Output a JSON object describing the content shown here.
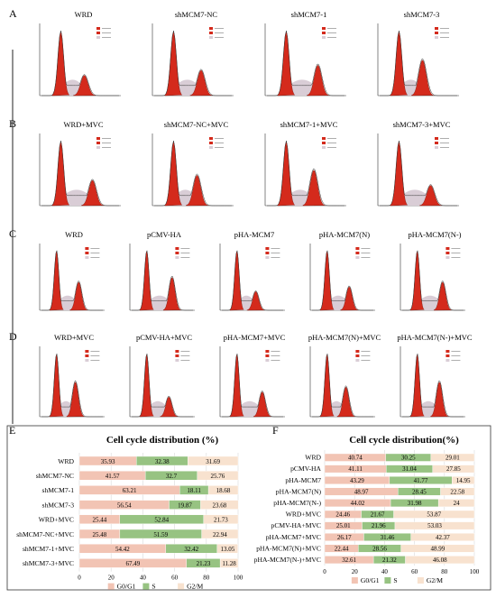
{
  "colors": {
    "g0g1": "#f2c4b4",
    "s": "#97c382",
    "g2m": "#f8e2cf",
    "peak": "#d42a1c",
    "sphase": "#d9cdd6"
  },
  "histogram_panels": [
    {
      "letter": "A",
      "titles": [
        "WRD",
        "shMCM7-NC",
        "shMCM7-1",
        "shMCM7-3"
      ]
    },
    {
      "letter": "B",
      "titles": [
        "WRD+MVC",
        "shMCM7-NC+MVC",
        "shMCM7-1+MVC",
        "shMCM7-3+MVC"
      ]
    },
    {
      "letter": "C",
      "titles": [
        "WRD",
        "pCMV-HA",
        "pHA-MCM7",
        "pHA-MCM7(N)",
        "pHA-MCM7(N-)"
      ]
    },
    {
      "letter": "D",
      "titles": [
        "WRD+MVC",
        "pCMV-HA+MVC",
        "pHA-MCM7+MVC",
        "pHA-MCM7(N)+MVC",
        "pHA-MCM7(N-)+MVC"
      ]
    }
  ],
  "chart_data": [
    {
      "letter": "E",
      "type": "bar",
      "stacked": true,
      "orientation": "horizontal",
      "title": "Cell cycle distribution (%)",
      "categories": [
        "WRD",
        "shMCM7-NC",
        "shMCM7-1",
        "shMCM7-3",
        "WRD+MVC",
        "shMCM7-NC+MVC",
        "shMCM7-1+MVC",
        "shMCM7-3+MVC"
      ],
      "series": [
        {
          "name": "G0/G1",
          "values": [
            35.93,
            41.57,
            63.21,
            56.54,
            25.44,
            25.48,
            54.42,
            67.49
          ]
        },
        {
          "name": "S",
          "values": [
            32.38,
            32.7,
            18.11,
            19.87,
            52.84,
            51.59,
            32.42,
            21.23
          ]
        },
        {
          "name": "G2/M",
          "values": [
            31.69,
            25.76,
            18.68,
            23.68,
            21.73,
            22.94,
            13.05,
            11.28
          ]
        }
      ],
      "xlim": [
        0,
        100
      ],
      "xticks": [
        "0",
        "20",
        "40",
        "60",
        "80",
        "100"
      ],
      "legend": "bottom"
    },
    {
      "letter": "F",
      "type": "bar",
      "stacked": true,
      "orientation": "horizontal",
      "title": "Cell cycle distribution(%)",
      "categories": [
        "WRD",
        "pCMV-HA",
        "pHA-MCM7",
        "pHA-MCM7(N)",
        "pHA-MCM7(N-)",
        "WRD+MVC",
        "pCMV-HA+MVC",
        "pHA-MCM7+MVC",
        "pHA-MCM7(N)+MVC",
        "pHA-MCM7(N-)+MVC"
      ],
      "series": [
        {
          "name": "G0/G1",
          "values": [
            40.74,
            41.11,
            43.29,
            48.97,
            44.02,
            24.46,
            25.01,
            26.17,
            22.44,
            32.61
          ]
        },
        {
          "name": "S",
          "values": [
            30.25,
            31.04,
            41.77,
            28.45,
            31.98,
            21.67,
            21.96,
            31.46,
            28.56,
            21.32
          ]
        },
        {
          "name": "G2/M",
          "values": [
            29.01,
            27.85,
            14.95,
            22.58,
            24,
            53.87,
            53.03,
            42.37,
            48.99,
            46.08
          ]
        }
      ],
      "xlim": [
        0,
        100
      ],
      "xticks": [
        "0",
        "20",
        "40",
        "60",
        "80",
        "100"
      ],
      "legend": "bottom"
    }
  ]
}
